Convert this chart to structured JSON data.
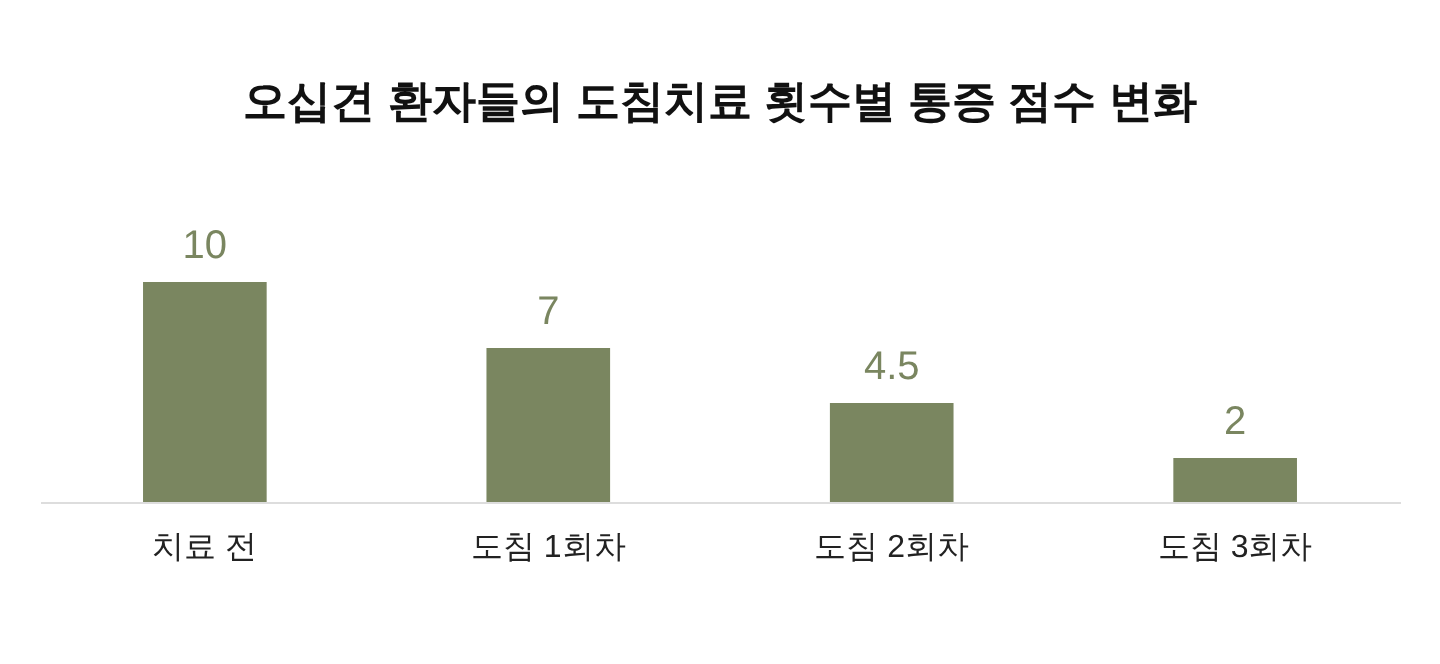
{
  "chart_data": {
    "type": "bar",
    "title": "오십견 환자들의 도침치료 횟수별 통증 점수 변화",
    "categories": [
      "치료 전",
      "도침 1회차",
      "도침 2회차",
      "도침 3회차"
    ],
    "values": [
      10,
      7,
      4.5,
      2
    ],
    "color": "#7a8660",
    "data_labels": true,
    "grid": false
  }
}
